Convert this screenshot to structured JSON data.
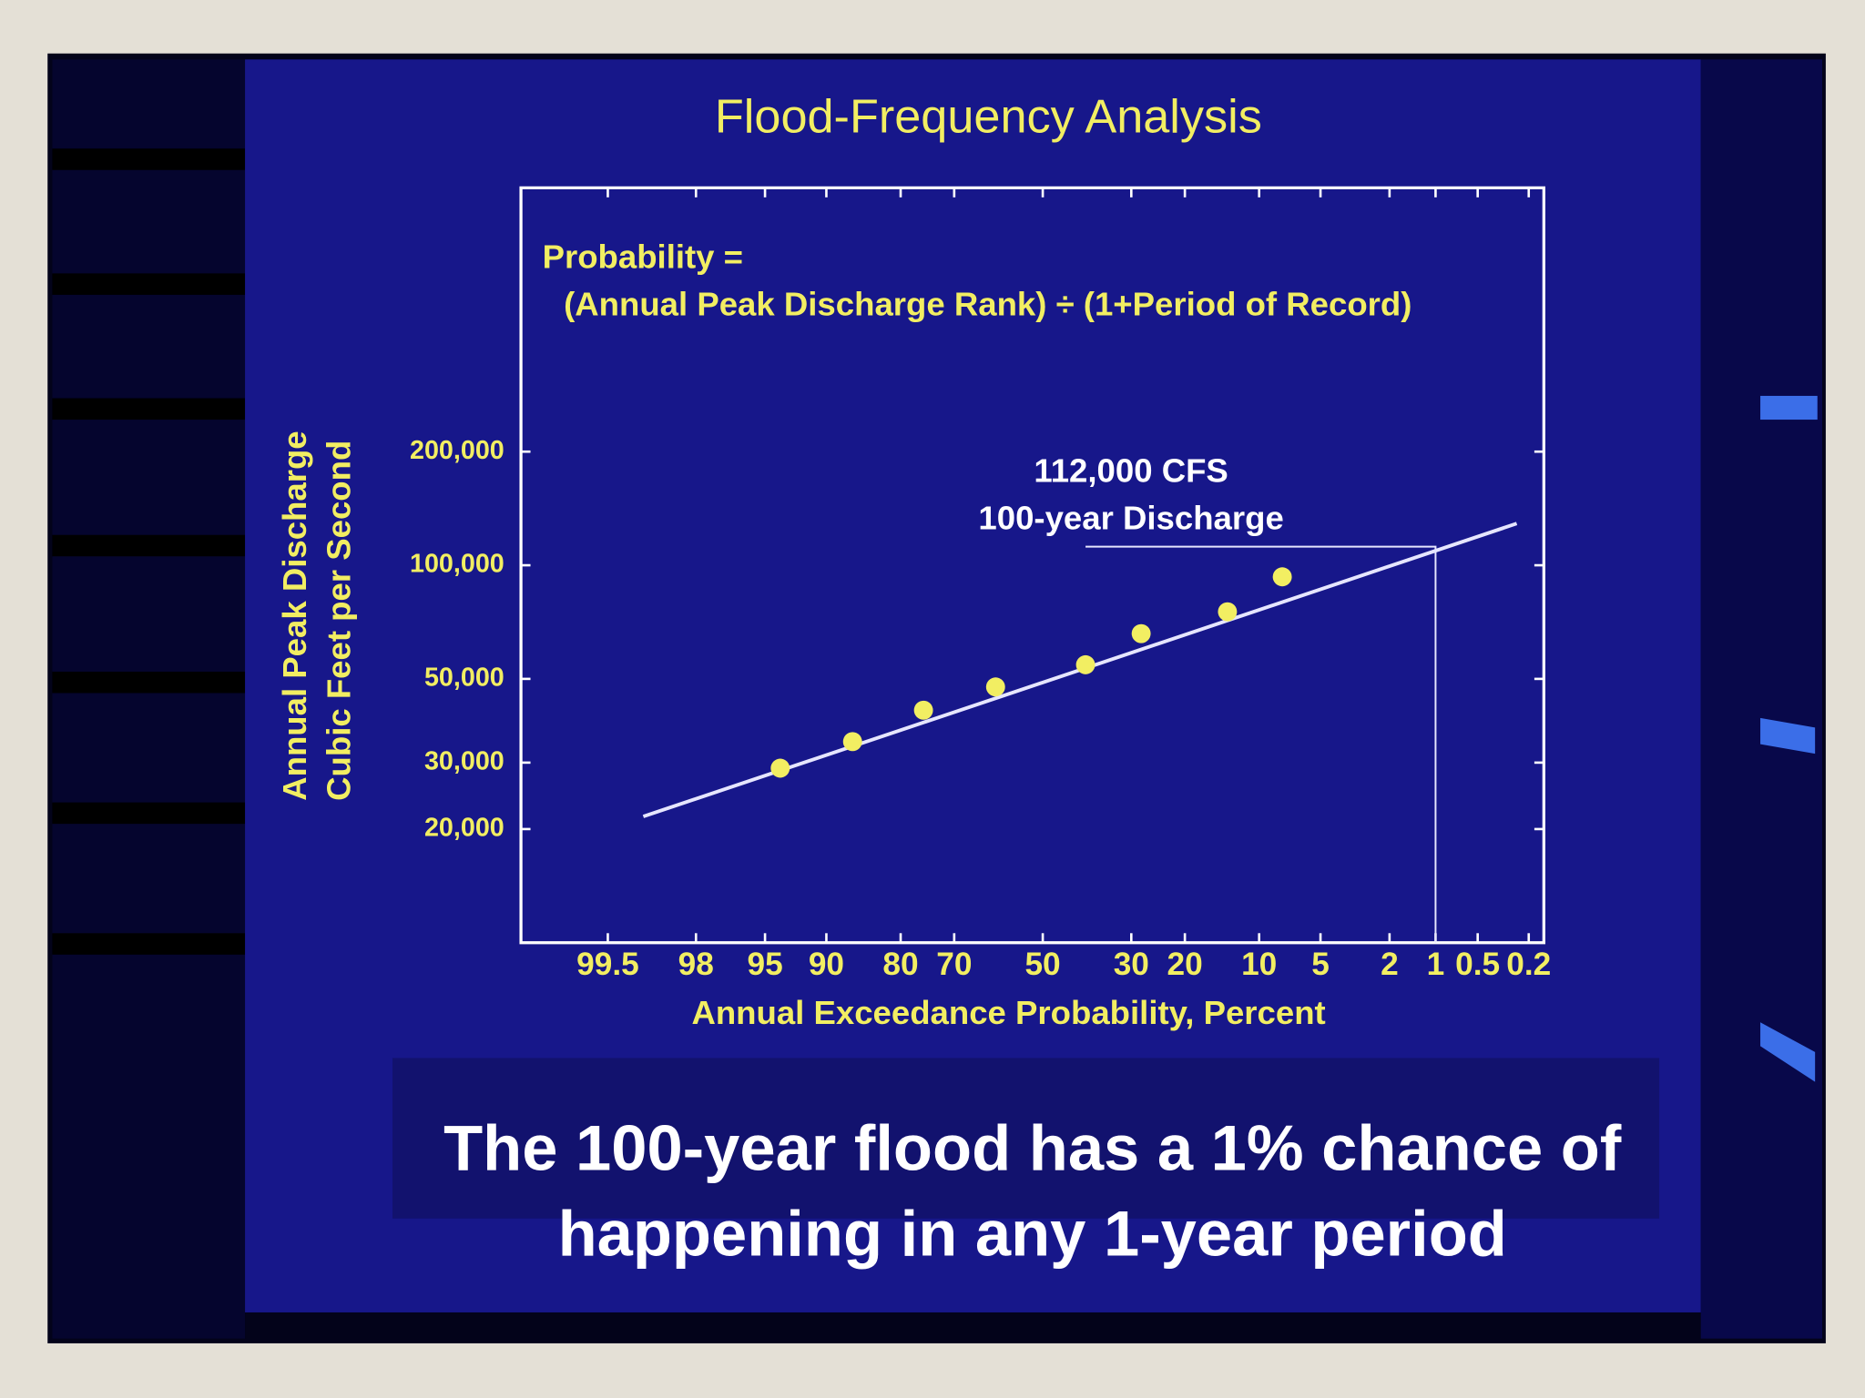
{
  "chart_data": {
    "type": "probability-scatter",
    "title": "Flood-Frequency Analysis",
    "formula": [
      "Probability =",
      "(Annual Peak Discharge Rank) ÷ (1+Period of Record)"
    ],
    "ylabel": [
      "Annual Peak Discharge",
      "Cubic Feet per Second"
    ],
    "xlabel": "Annual Exceedance Probability, Percent",
    "annotation": [
      "112,000 CFS",
      "100-year Discharge"
    ],
    "caption": [
      "The 100-year flood has a 1% chance of",
      "happening in any 1-year period"
    ],
    "x_scale": "normal-probability",
    "y_scale": "log",
    "xlim": [
      99.9,
      0.15
    ],
    "ylim": [
      10000,
      1000000
    ],
    "xticks": [
      99.5,
      98,
      95,
      90,
      80,
      70,
      50,
      30,
      20,
      10,
      5,
      2,
      1,
      0.5,
      0.2
    ],
    "yticks": [
      {
        "value": 20000,
        "label": "20,000"
      },
      {
        "value": 30000,
        "label": "30,000"
      },
      {
        "value": 50000,
        "label": "50,000"
      },
      {
        "value": 100000,
        "label": "100,000"
      },
      {
        "value": 200000,
        "label": "200,000"
      }
    ],
    "points": {
      "color": "#f2ee62",
      "x": [
        94,
        87,
        76,
        61,
        40,
        28,
        13.7,
        7.8
      ],
      "values": [
        29000,
        34100,
        41300,
        47600,
        54500,
        65900,
        75300,
        93200
      ]
    },
    "fit_line": {
      "color": "#e6e6ff",
      "x": [
        99.1,
        0.25
      ],
      "values": [
        21600,
        129000
      ]
    },
    "reference_line": {
      "color": "#e6e6ff",
      "x": [
        40,
        1,
        1
      ],
      "values": [
        112000,
        112000,
        10000
      ]
    }
  }
}
